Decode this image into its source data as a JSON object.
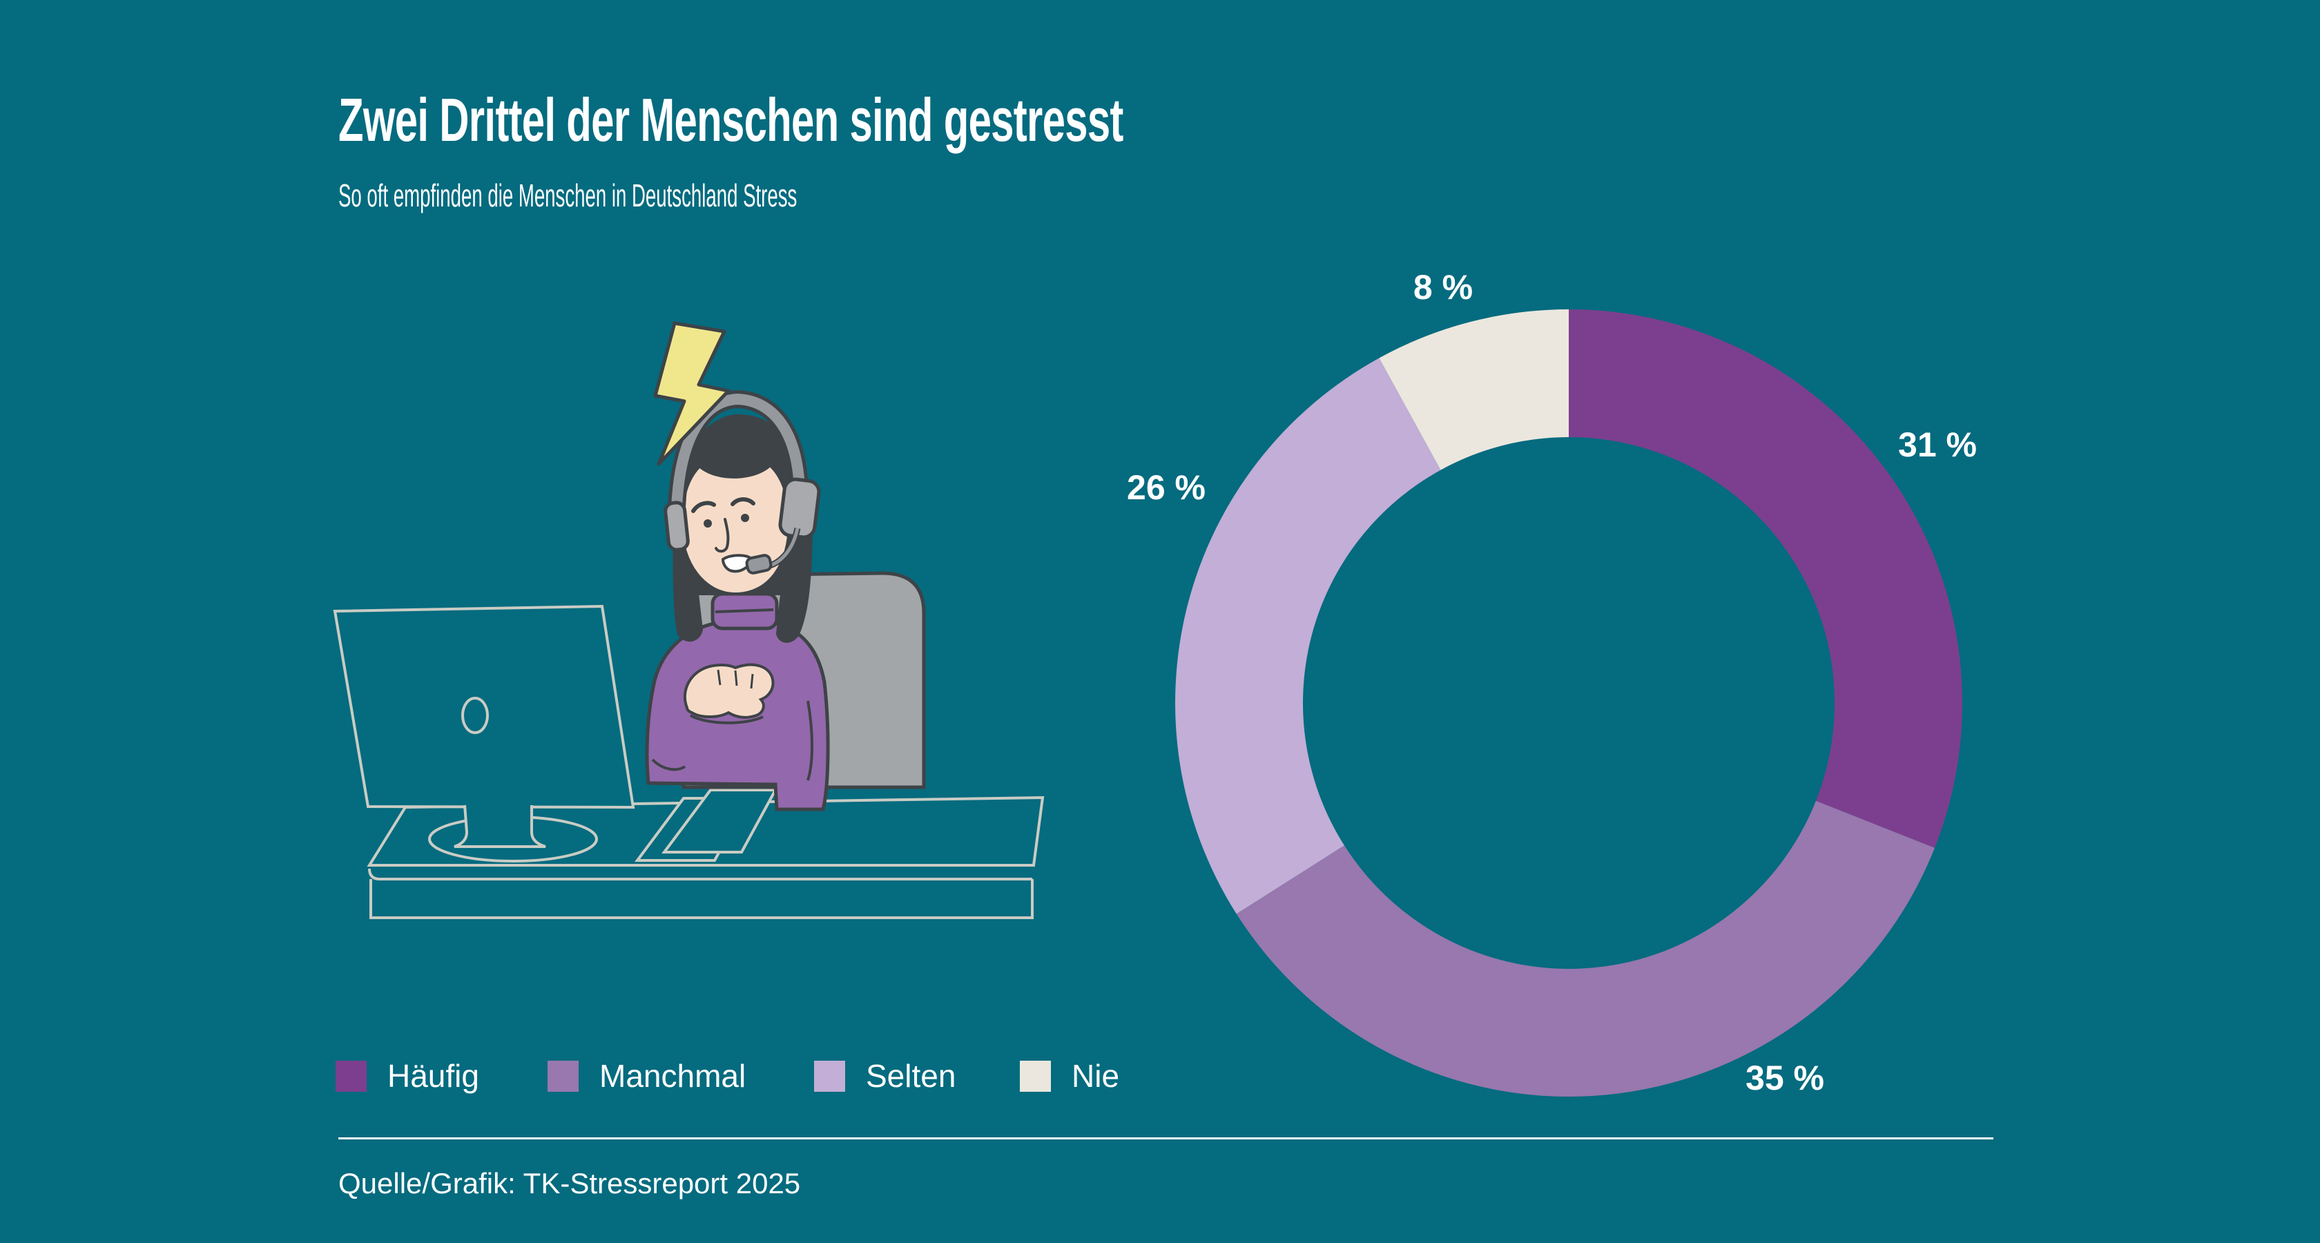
{
  "page": {
    "background_color": "#056B7F",
    "text_color": "#FFFFFF"
  },
  "header": {
    "title": "Zwei Drittel der Menschen sind gestresst",
    "subtitle": "So oft empfinden die Menschen in Deutschland Stress"
  },
  "chart_data": {
    "type": "pie",
    "variant": "donut",
    "title": "Zwei Drittel der Menschen sind gestresst",
    "subtitle": "So oft empfinden die Menschen in Deutschland Stress",
    "units": "%",
    "total": 100,
    "start_angle_deg": 0,
    "direction": "clockwise-from-top",
    "inner_radius_ratio": 0.675,
    "legend_position": "bottom-left",
    "slices": [
      {
        "name": "Häufig",
        "value": 31,
        "label": "31 %",
        "color": "#7C3F8F"
      },
      {
        "name": "Manchmal",
        "value": 35,
        "label": "35 %",
        "color": "#9878AE"
      },
      {
        "name": "Selten",
        "value": 26,
        "label": "26 %",
        "color": "#C2AED6"
      },
      {
        "name": "Nie",
        "value": 8,
        "label": "8 %",
        "color": "#EBE7DE"
      }
    ]
  },
  "illustration": {
    "subject": "stressed woman with headset at desk with monitor and keyboard, lightning bolt above head",
    "colors": {
      "lightning": "#F0E78C",
      "sweater": "#9468AC",
      "skin": "#F6DCC8",
      "hair": "#3E4347",
      "headset": "#A8AAAD",
      "chair": "#A3A6A9",
      "desk_outline": "#C9CCC4",
      "line_art_outline": "#3E4347"
    }
  },
  "footer": {
    "source": "Quelle/Grafik: TK-Stressreport 2025"
  }
}
